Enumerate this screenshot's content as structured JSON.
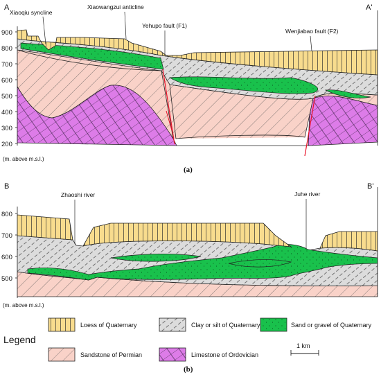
{
  "section_a": {
    "left_end": "A",
    "right_end": "A'",
    "features": {
      "syncline": "Xiaoqiu syncline",
      "anticline": "Xiaowangzui anticline",
      "fault1": "Yehupo fault (F1)",
      "fault2": "Wenjiabao fault (F2)"
    },
    "y_ticks": [
      "900",
      "800",
      "700",
      "600",
      "500",
      "400",
      "300",
      "200"
    ],
    "axis_unit": "(m. above m.s.l.)",
    "caption": "(a)"
  },
  "section_b": {
    "left_end": "B",
    "right_end": "B'",
    "features": {
      "river1": "Zhaoshi river",
      "river2": "Juhe river"
    },
    "y_ticks": [
      "800",
      "700",
      "600",
      "500"
    ],
    "axis_unit": "(m. above m.s.l.)",
    "caption": "(b)"
  },
  "legend": {
    "title": "Legend",
    "items": [
      {
        "label": "Loess of Quaternary",
        "fill": "#f8dc8e",
        "pattern": "vertical-lines"
      },
      {
        "label": "Clay or silt of Quaternary",
        "fill": "#dcdcdc",
        "pattern": "dashed-diagonal"
      },
      {
        "label": "Sand or gravel of Quaternary",
        "fill": "#19c14c",
        "pattern": "dots"
      },
      {
        "label": "Sandstone of Permian",
        "fill": "#f9d2c8",
        "pattern": "diagonal-lines"
      },
      {
        "label": "Limestone of Ordovician",
        "fill": "#dd7ce8",
        "pattern": "brick"
      }
    ],
    "scale_bar": "1 km"
  },
  "colors": {
    "fault_line": "#e8132a",
    "outline": "#222222"
  }
}
